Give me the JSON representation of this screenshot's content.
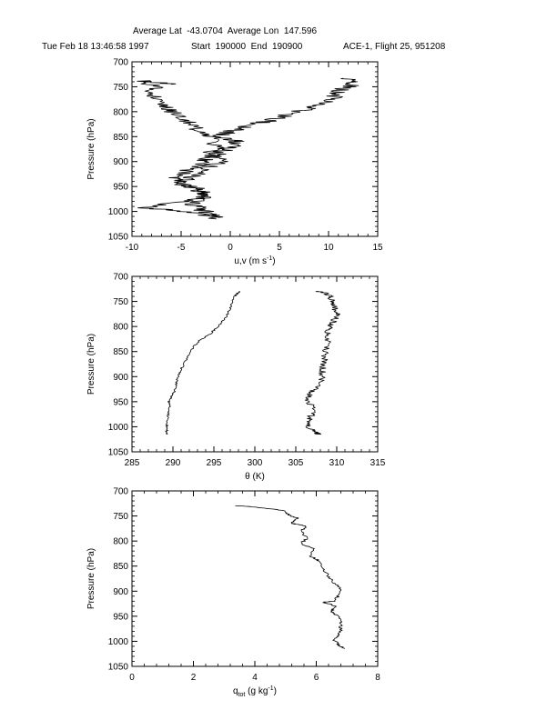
{
  "header": {
    "line1": "Average Lat  -43.0704  Average Lon  147.596",
    "datetime": "Tue Feb 18 13:46:58 1997",
    "start_end": "Start  190000  End  190900",
    "flight": "ACE-1, Flight 25, 951208"
  },
  "chart_data": [
    {
      "type": "line",
      "ylabel": "Pressure (hPa)",
      "xlabel_main": "u,v (m s",
      "xlabel_sup": "-1",
      "xlabel_tail": ")",
      "xlim": [
        -10,
        15
      ],
      "ylim": [
        1050,
        700
      ],
      "xticks": [
        -10,
        -5,
        0,
        5,
        10,
        15
      ],
      "yticks": [
        700,
        750,
        800,
        850,
        900,
        950,
        1000,
        1050
      ],
      "series": [
        {
          "name": "",
          "noise": 0.9,
          "points": [
            [
              -1.7,
              1015
            ],
            [
              -3,
              1005
            ],
            [
              -6,
              997
            ],
            [
              -9,
              993
            ],
            [
              -6.5,
              985
            ],
            [
              -3.5,
              975
            ],
            [
              -2.5,
              965
            ],
            [
              -3.2,
              955
            ],
            [
              -5,
              945
            ],
            [
              -5.5,
              935
            ],
            [
              -5,
              925
            ],
            [
              -4,
              915
            ],
            [
              -3,
              905
            ],
            [
              -2.5,
              895
            ],
            [
              -2,
              885
            ],
            [
              -1.5,
              870
            ],
            [
              -1.5,
              855
            ],
            [
              -2.5,
              845
            ],
            [
              -3.5,
              835
            ],
            [
              -4,
              825
            ],
            [
              -4.5,
              815
            ],
            [
              -5.5,
              805
            ],
            [
              -6.5,
              795
            ],
            [
              -7,
              785
            ],
            [
              -7.5,
              770
            ],
            [
              -8.5,
              760
            ],
            [
              -7.5,
              750
            ],
            [
              -9,
              738
            ],
            [
              -6,
              745
            ]
          ]
        },
        {
          "name": "",
          "noise": 1.0,
          "points": [
            [
              -1.7,
              1012
            ],
            [
              -2,
              1005
            ],
            [
              -3,
              995
            ],
            [
              -4,
              985
            ],
            [
              -3,
              975
            ],
            [
              -2,
              968
            ],
            [
              -3,
              960
            ],
            [
              -4,
              950
            ],
            [
              -5,
              940
            ],
            [
              -4,
              930
            ],
            [
              -3,
              920
            ],
            [
              -2,
              910
            ],
            [
              -1.2,
              900
            ],
            [
              -1.5,
              890
            ],
            [
              -1,
              880
            ],
            [
              0,
              870
            ],
            [
              0.8,
              860
            ],
            [
              0,
              855
            ],
            [
              -1,
              848
            ],
            [
              0,
              840
            ],
            [
              1,
              835
            ],
            [
              2.5,
              825
            ],
            [
              4,
              818
            ],
            [
              5.5,
              808
            ],
            [
              7,
              800
            ],
            [
              8.5,
              790
            ],
            [
              9.5,
              780
            ],
            [
              10.5,
              770
            ],
            [
              11,
              760
            ],
            [
              12,
              750
            ],
            [
              12.5,
              740
            ],
            [
              11.5,
              733
            ]
          ]
        }
      ]
    },
    {
      "type": "line",
      "ylabel": "Pressure (hPa)",
      "xlabel_main": "θ (K)",
      "xlim": [
        285,
        315
      ],
      "ylim": [
        1050,
        700
      ],
      "xticks": [
        285,
        290,
        295,
        300,
        305,
        310,
        315
      ],
      "yticks": [
        700,
        750,
        800,
        850,
        900,
        950,
        1000,
        1050
      ],
      "series": [
        {
          "name": "",
          "noise": 0.15,
          "points": [
            [
              289.3,
              1015
            ],
            [
              289.2,
              1005
            ],
            [
              289.3,
              995
            ],
            [
              289.4,
              980
            ],
            [
              289.6,
              965
            ],
            [
              289.5,
              950
            ],
            [
              289.8,
              940
            ],
            [
              290.2,
              930
            ],
            [
              290.4,
              915
            ],
            [
              290.6,
              900
            ],
            [
              291,
              885
            ],
            [
              291.5,
              870
            ],
            [
              292,
              855
            ],
            [
              292.5,
              840
            ],
            [
              293.5,
              825
            ],
            [
              294.5,
              815
            ],
            [
              295.5,
              800
            ],
            [
              296,
              790
            ],
            [
              296.5,
              780
            ],
            [
              296.8,
              770
            ],
            [
              297.2,
              755
            ],
            [
              297.5,
              740
            ],
            [
              298,
              732
            ],
            [
              298.2,
              730
            ]
          ]
        },
        {
          "name": "",
          "noise": 0.45,
          "points": [
            [
              307.8,
              1015
            ],
            [
              307,
              1008
            ],
            [
              306.5,
              998
            ],
            [
              306.6,
              985
            ],
            [
              307,
              975
            ],
            [
              307,
              960
            ],
            [
              306.5,
              945
            ],
            [
              306.8,
              932
            ],
            [
              307.5,
              925
            ],
            [
              308,
              915
            ],
            [
              308.2,
              900
            ],
            [
              308.3,
              885
            ],
            [
              308.5,
              870
            ],
            [
              308.6,
              855
            ],
            [
              308.8,
              840
            ],
            [
              309,
              825
            ],
            [
              309,
              810
            ],
            [
              309.2,
              800
            ],
            [
              309.6,
              790
            ],
            [
              310,
              780
            ],
            [
              310,
              770
            ],
            [
              309.6,
              760
            ],
            [
              309.5,
              750
            ],
            [
              309.2,
              740
            ],
            [
              308.5,
              733
            ],
            [
              307.8,
              730
            ]
          ]
        }
      ]
    },
    {
      "type": "line",
      "ylabel": "Pressure (hPa)",
      "xlabel_main": "q",
      "xlabel_sub": "tot",
      "xlabel_tail": " (g kg",
      "xlabel_sup": "-1",
      "xlabel_end": ")",
      "xlim": [
        0,
        8
      ],
      "ylim": [
        1050,
        700
      ],
      "xticks": [
        0,
        2,
        4,
        6,
        8
      ],
      "yticks": [
        700,
        750,
        800,
        850,
        900,
        950,
        1000,
        1050
      ],
      "series": [
        {
          "name": "",
          "noise": 0.06,
          "points": [
            [
              6.9,
              1015
            ],
            [
              6.75,
              1008
            ],
            [
              6.6,
              998
            ],
            [
              6.7,
              990
            ],
            [
              6.8,
              980
            ],
            [
              6.8,
              965
            ],
            [
              6.7,
              950
            ],
            [
              6.5,
              940
            ],
            [
              6.6,
              930
            ],
            [
              6.4,
              925
            ],
            [
              6.2,
              922
            ],
            [
              6.6,
              920
            ],
            [
              6.7,
              910
            ],
            [
              6.8,
              895
            ],
            [
              6.6,
              885
            ],
            [
              6.4,
              870
            ],
            [
              6.2,
              855
            ],
            [
              6.1,
              840
            ],
            [
              5.8,
              830
            ],
            [
              5.9,
              815
            ],
            [
              5.5,
              805
            ],
            [
              5.7,
              795
            ],
            [
              5.5,
              780
            ],
            [
              5.7,
              770
            ],
            [
              5.2,
              765
            ],
            [
              5.4,
              755
            ],
            [
              5.1,
              748
            ],
            [
              5.0,
              740
            ],
            [
              4.4,
              735
            ],
            [
              3.6,
              730
            ],
            [
              3.4,
              730
            ]
          ]
        }
      ]
    }
  ]
}
